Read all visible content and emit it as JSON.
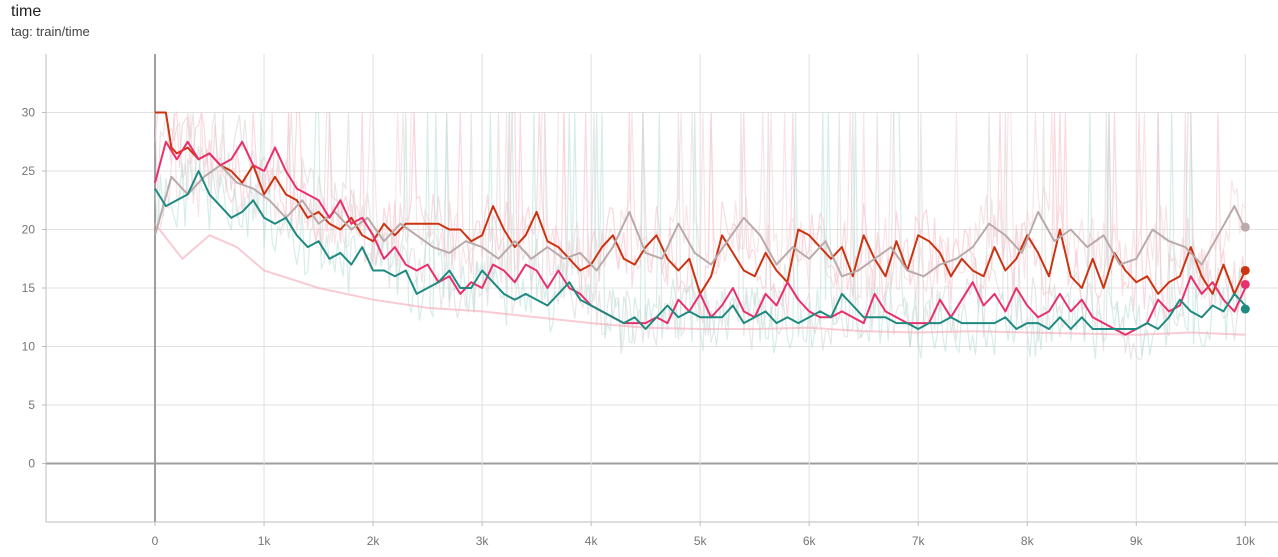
{
  "header": {
    "title": "time",
    "tag": "tag: train/time"
  },
  "chart_data": {
    "type": "line",
    "xlim": [
      -1000,
      10300
    ],
    "ylim": [
      -5,
      35
    ],
    "x_ticks": [
      0,
      1000,
      2000,
      3000,
      4000,
      5000,
      6000,
      7000,
      8000,
      9000,
      10000
    ],
    "x_tick_labels": [
      "0",
      "1k",
      "2k",
      "3k",
      "4k",
      "5k",
      "6k",
      "7k",
      "8k",
      "9k",
      "10k"
    ],
    "y_ticks": [
      0,
      5,
      10,
      15,
      20,
      25,
      30
    ],
    "y_tick_labels": [
      "0",
      "5",
      "10",
      "15",
      "20",
      "25",
      "30"
    ],
    "grid": true,
    "smoothed_series": [
      {
        "color": "#f5a9b8",
        "x": [
          0,
          250,
          500,
          750,
          1000,
          1500,
          2000,
          2500,
          3000,
          3500,
          4000,
          4500,
          5000,
          5500,
          6000,
          6500,
          7000,
          7500,
          8000,
          8500,
          9000,
          9500,
          10000
        ],
        "y": [
          20.5,
          17.5,
          19.5,
          18.5,
          16.5,
          15,
          14,
          13.3,
          13,
          12.5,
          12,
          11.6,
          11.5,
          11.5,
          11.6,
          11.3,
          11.2,
          11.3,
          11.2,
          11.1,
          11,
          11.2,
          11
        ]
      }
    ],
    "series": [
      {
        "color": "#cc3311",
        "x": [
          0,
          100,
          150,
          200,
          300,
          400,
          500,
          600,
          700,
          800,
          900,
          1000,
          1100,
          1200,
          1300,
          1400,
          1500,
          1600,
          1700,
          1800,
          1900,
          2000,
          2100,
          2200,
          2300,
          2400,
          2500,
          2600,
          2700,
          2800,
          2900,
          3000,
          3100,
          3200,
          3300,
          3400,
          3500,
          3600,
          3700,
          3800,
          3900,
          4000,
          4100,
          4200,
          4300,
          4400,
          4500,
          4600,
          4700,
          4800,
          4900,
          5000,
          5100,
          5200,
          5300,
          5400,
          5500,
          5600,
          5700,
          5800,
          5900,
          6000,
          6100,
          6200,
          6300,
          6400,
          6500,
          6600,
          6700,
          6800,
          6900,
          7000,
          7100,
          7200,
          7300,
          7400,
          7500,
          7600,
          7700,
          7800,
          7900,
          8000,
          8100,
          8200,
          8300,
          8400,
          8500,
          8600,
          8700,
          8800,
          8900,
          9000,
          9100,
          9200,
          9300,
          9400,
          9500,
          9600,
          9700,
          9800,
          9900,
          10000
        ],
        "y": [
          30,
          30,
          27,
          26.5,
          27,
          26,
          26.5,
          25.5,
          25,
          24,
          25.5,
          23,
          24.5,
          23,
          22.5,
          21,
          21.5,
          20.5,
          20,
          21,
          19.5,
          19,
          20.5,
          19.5,
          20.5,
          20.5,
          20.5,
          20.5,
          20,
          20,
          19,
          19.5,
          22,
          20,
          18.5,
          19.5,
          21.5,
          19,
          18.5,
          17.5,
          16.5,
          17,
          18.5,
          19.5,
          17.5,
          17,
          18.5,
          19.5,
          17.5,
          16.5,
          17.5,
          14.5,
          16,
          19.5,
          18,
          16.5,
          16,
          18,
          16.5,
          15.5,
          20,
          19.5,
          18.5,
          17.5,
          18.5,
          16,
          19.5,
          17.5,
          16,
          19,
          16.5,
          19.5,
          19,
          18,
          16,
          17.5,
          16.5,
          16,
          18.5,
          16.5,
          17.5,
          19.5,
          18,
          16,
          20,
          16,
          15,
          17.5,
          15,
          18,
          16.5,
          15.5,
          16,
          14.5,
          15.5,
          16,
          18.5,
          16,
          14.5,
          17,
          14.5,
          16.5
        ]
      },
      {
        "color": "#bbaaaa",
        "x": [
          0,
          150,
          300,
          450,
          600,
          750,
          900,
          1050,
          1200,
          1350,
          1500,
          1650,
          1800,
          1950,
          2100,
          2250,
          2400,
          2550,
          2700,
          2850,
          3000,
          3150,
          3300,
          3450,
          3600,
          3750,
          3900,
          4050,
          4200,
          4350,
          4500,
          4650,
          4800,
          4950,
          5100,
          5250,
          5400,
          5550,
          5700,
          5850,
          6000,
          6150,
          6300,
          6450,
          6600,
          6750,
          6900,
          7050,
          7200,
          7350,
          7500,
          7650,
          7800,
          7950,
          8100,
          8250,
          8400,
          8550,
          8700,
          8850,
          9000,
          9150,
          9300,
          9450,
          9600,
          9750,
          9900,
          10000
        ],
        "y": [
          19.5,
          24.5,
          23,
          24.5,
          25.5,
          24,
          23.5,
          22.5,
          21,
          22.5,
          20.5,
          21.5,
          20,
          21,
          19,
          20.5,
          19.5,
          18.5,
          18,
          19,
          18.5,
          17.5,
          19,
          17.5,
          18.5,
          17.5,
          18,
          16.5,
          18.5,
          21.5,
          18,
          17.5,
          20.5,
          18,
          17,
          19,
          21,
          19.5,
          17,
          18.5,
          17.5,
          19,
          16,
          16.5,
          17.5,
          18.5,
          16.5,
          16,
          17,
          17.5,
          18.5,
          20.5,
          19.5,
          18,
          21.5,
          19,
          20,
          18.5,
          19.5,
          17,
          17.5,
          20,
          19,
          18.5,
          17,
          19.5,
          22,
          20
        ]
      },
      {
        "color": "#e8306c",
        "x": [
          0,
          100,
          200,
          300,
          400,
          500,
          600,
          700,
          800,
          900,
          1000,
          1100,
          1200,
          1300,
          1400,
          1500,
          1600,
          1700,
          1800,
          1900,
          2000,
          2100,
          2200,
          2300,
          2400,
          2500,
          2600,
          2700,
          2800,
          2900,
          3000,
          3100,
          3200,
          3300,
          3400,
          3500,
          3600,
          3700,
          3800,
          3900,
          4000,
          4100,
          4200,
          4300,
          4400,
          4500,
          4600,
          4700,
          4800,
          4900,
          5000,
          5100,
          5200,
          5300,
          5400,
          5500,
          5600,
          5700,
          5800,
          5900,
          6000,
          6100,
          6200,
          6300,
          6400,
          6500,
          6600,
          6700,
          6800,
          6900,
          7000,
          7100,
          7200,
          7300,
          7400,
          7500,
          7600,
          7700,
          7800,
          7900,
          8000,
          8100,
          8200,
          8300,
          8400,
          8500,
          8600,
          8700,
          8800,
          8900,
          9000,
          9100,
          9200,
          9300,
          9400,
          9500,
          9600,
          9700,
          9800,
          9900,
          10000
        ],
        "y": [
          24,
          27.5,
          26,
          27.5,
          26,
          26.5,
          25.5,
          26,
          27.5,
          25.5,
          25,
          27,
          25,
          23.5,
          23,
          22.5,
          21,
          22.5,
          20.5,
          21,
          19.5,
          17.5,
          18.5,
          17,
          16.5,
          17,
          15.5,
          16,
          14.5,
          15.5,
          15,
          17,
          16.5,
          15.5,
          17,
          16.5,
          15,
          16.5,
          15,
          14.5,
          13.5,
          13,
          12.5,
          12,
          12,
          12,
          12.5,
          12,
          14,
          13,
          14.5,
          12.5,
          13.5,
          15,
          13,
          12.5,
          14.5,
          13.5,
          15.5,
          14,
          13,
          12.5,
          12.5,
          13,
          12.5,
          12,
          14.5,
          13,
          12.5,
          12,
          12,
          12,
          14,
          12.5,
          14,
          15.5,
          13.5,
          14.5,
          13,
          15,
          13.5,
          12.5,
          13,
          14.5,
          13,
          14,
          12.5,
          12,
          11.5,
          11,
          11.5,
          12,
          14,
          13,
          13.5,
          16,
          14.5,
          15.5,
          14,
          13,
          15
        ]
      },
      {
        "color": "#1f8a80",
        "x": [
          0,
          100,
          200,
          300,
          400,
          500,
          600,
          700,
          800,
          900,
          1000,
          1100,
          1200,
          1300,
          1400,
          1500,
          1600,
          1700,
          1800,
          1900,
          2000,
          2100,
          2200,
          2300,
          2400,
          2500,
          2600,
          2700,
          2800,
          2900,
          3000,
          3100,
          3200,
          3300,
          3400,
          3500,
          3600,
          3700,
          3800,
          3900,
          4000,
          4100,
          4200,
          4300,
          4400,
          4500,
          4600,
          4700,
          4800,
          4900,
          5000,
          5100,
          5200,
          5300,
          5400,
          5500,
          5600,
          5700,
          5800,
          5900,
          6000,
          6100,
          6200,
          6300,
          6400,
          6500,
          6600,
          6700,
          6800,
          6900,
          7000,
          7100,
          7200,
          7300,
          7400,
          7500,
          7600,
          7700,
          7800,
          7900,
          8000,
          8100,
          8200,
          8300,
          8400,
          8500,
          8600,
          8700,
          8800,
          8900,
          9000,
          9100,
          9200,
          9300,
          9400,
          9500,
          9600,
          9700,
          9800,
          9900,
          10000
        ],
        "y": [
          23.5,
          22,
          22.5,
          23,
          25,
          23,
          22,
          21,
          21.5,
          22.5,
          21,
          20.5,
          21,
          19.5,
          18.5,
          19,
          17.5,
          18,
          17,
          18.5,
          16.5,
          16.5,
          16,
          16.5,
          14.5,
          15,
          15.5,
          16.5,
          15,
          15,
          16.5,
          15.5,
          14.5,
          14,
          14.5,
          14,
          13.5,
          14.5,
          15.5,
          14,
          13.5,
          13,
          12.5,
          12,
          12.5,
          11.5,
          12.5,
          13.5,
          12.5,
          13,
          12.5,
          12.5,
          12.5,
          13.5,
          12,
          12.5,
          13,
          12,
          12.5,
          12,
          12.5,
          13,
          12.5,
          14.5,
          13.5,
          12.5,
          12.5,
          12.5,
          12,
          12,
          11.5,
          12,
          12,
          12.5,
          12,
          12,
          12,
          12,
          12.5,
          11.5,
          12,
          12,
          11.5,
          12.5,
          11.5,
          12.5,
          11.5,
          11.5,
          11.5,
          11.5,
          11.5,
          12,
          11.5,
          12.5,
          14,
          13,
          12.5,
          13.5,
          13,
          14.5,
          13.5
        ]
      }
    ],
    "end_markers": [
      {
        "color": "#bbaaaa",
        "x": 10000,
        "y": 20.2
      },
      {
        "color": "#cc3311",
        "x": 10000,
        "y": 16.5
      },
      {
        "color": "#e8306c",
        "x": 10000,
        "y": 15.3
      },
      {
        "color": "#1f8a80",
        "x": 10000,
        "y": 13.2
      }
    ]
  }
}
